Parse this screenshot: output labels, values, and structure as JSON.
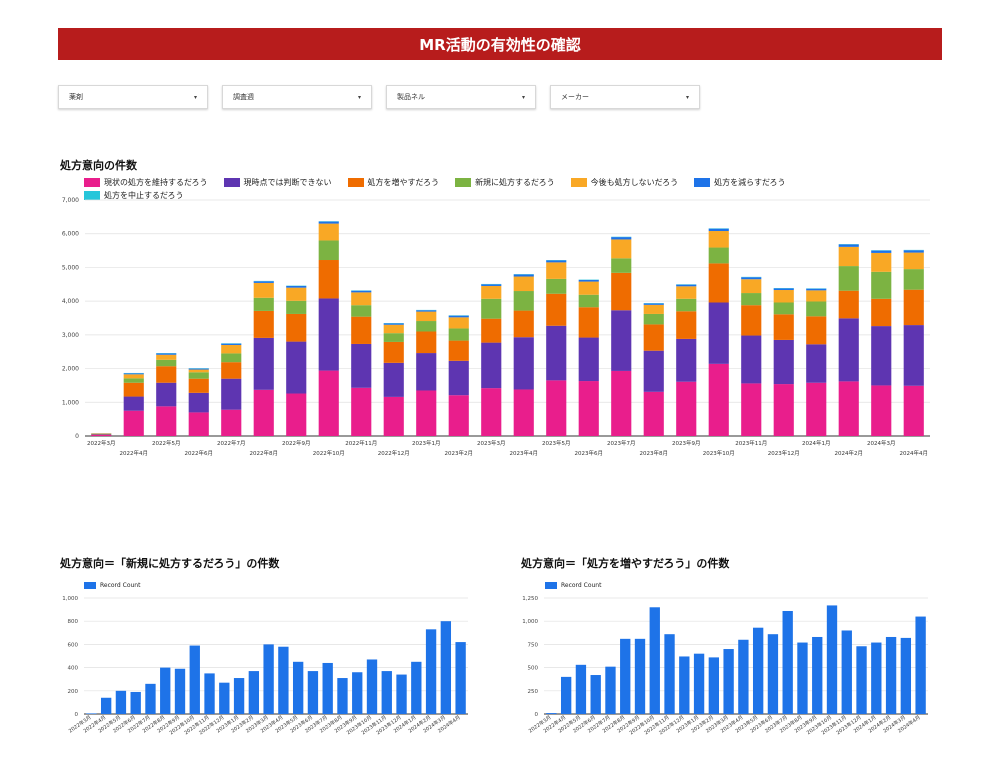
{
  "header": {
    "title": "MR活動の有効性の確認"
  },
  "filters": [
    {
      "label": "薬剤",
      "caret": "▾"
    },
    {
      "label": "調査週",
      "caret": "▾"
    },
    {
      "label": "製品ネル",
      "caret": "▾"
    },
    {
      "label": "メーカー",
      "caret": "▾"
    }
  ],
  "colors": {
    "pink": "#e91e8c",
    "purple": "#5e35b1",
    "orange": "#ef6c00",
    "green": "#7cb342",
    "yellow": "#f9a825",
    "blue": "#1e73e8",
    "teal": "#26c6da",
    "header_bg": "#b71c1c"
  },
  "chart_data": [
    {
      "type": "bar",
      "stacked": true,
      "title": "処方意向の件数",
      "ylim": [
        0,
        7000
      ],
      "yticks": [
        0,
        1000,
        2000,
        3000,
        4000,
        5000,
        6000,
        7000
      ],
      "ytick_labels": [
        "0",
        "1,000",
        "2,000",
        "3,000",
        "4,000",
        "5,000",
        "6,000",
        "7,000"
      ],
      "grid": true,
      "legend_position": "top",
      "categories": [
        "2022年3月",
        "2022年4月",
        "2022年5月",
        "2022年6月",
        "2022年7月",
        "2022年8月",
        "2022年9月",
        "2022年10月",
        "2022年11月",
        "2022年12月",
        "2023年1月",
        "2023年2月",
        "2023年3月",
        "2023年4月",
        "2023年5月",
        "2023年6月",
        "2023年7月",
        "2023年8月",
        "2023年9月",
        "2023年10月",
        "2023年11月",
        "2023年12月",
        "2024年1月",
        "2024年2月",
        "2024年3月",
        "2024年4月"
      ],
      "series": [
        {
          "name": "現状の処方を維持するだろう",
          "color": "#e91e8c",
          "values": [
            30,
            750,
            880,
            700,
            780,
            1370,
            1260,
            1940,
            1430,
            1160,
            1350,
            1210,
            1420,
            1380,
            1650,
            1630,
            1930,
            1310,
            1610,
            2140,
            1560,
            1540,
            1580,
            1620,
            1500,
            1490
          ]
        },
        {
          "name": "現時点では判断できない",
          "color": "#5e35b1",
          "values": [
            15,
            420,
            700,
            580,
            920,
            1540,
            1540,
            2140,
            1300,
            1010,
            1110,
            1020,
            1350,
            1550,
            1620,
            1290,
            1800,
            1220,
            1270,
            1820,
            1420,
            1310,
            1140,
            1870,
            1760,
            1800
          ]
        },
        {
          "name": "処方を増やすだろう",
          "color": "#ef6c00",
          "values": [
            10,
            410,
            490,
            420,
            490,
            800,
            820,
            1140,
            810,
            620,
            640,
            600,
            710,
            790,
            950,
            900,
            1110,
            780,
            820,
            1160,
            900,
            760,
            830,
            820,
            810,
            1050
          ]
        },
        {
          "name": "新規に処方するだろう",
          "color": "#7cb342",
          "values": [
            5,
            130,
            190,
            190,
            260,
            390,
            390,
            580,
            340,
            260,
            310,
            360,
            590,
            580,
            440,
            370,
            430,
            310,
            370,
            470,
            360,
            350,
            440,
            730,
            800,
            610
          ]
        },
        {
          "name": "今後も処方しないだろう",
          "color": "#f9a825",
          "values": [
            15,
            120,
            150,
            80,
            250,
            440,
            390,
            500,
            380,
            250,
            280,
            330,
            380,
            430,
            490,
            390,
            560,
            270,
            370,
            490,
            410,
            370,
            330,
            570,
            560,
            490
          ]
        },
        {
          "name": "処方を減らすだろう",
          "color": "#1e73e8",
          "values": [
            5,
            30,
            40,
            30,
            40,
            50,
            50,
            60,
            50,
            40,
            40,
            50,
            50,
            60,
            60,
            50,
            70,
            40,
            50,
            70,
            60,
            50,
            50,
            70,
            70,
            70
          ]
        },
        {
          "name": "処方を中止するだろう",
          "color": "#26c6da",
          "values": [
            2,
            10,
            10,
            10,
            10,
            10,
            10,
            10,
            10,
            10,
            10,
            10,
            10,
            10,
            10,
            10,
            10,
            10,
            10,
            10,
            10,
            10,
            10,
            10,
            10,
            10
          ]
        }
      ]
    },
    {
      "type": "bar",
      "title": "処方意向＝「新規に処方するだろう」の件数",
      "series_name": "Record Count",
      "color": "#1e73e8",
      "ylim": [
        0,
        1000
      ],
      "yticks": [
        0,
        200,
        400,
        600,
        800,
        1000
      ],
      "ytick_labels": [
        "0",
        "200",
        "400",
        "600",
        "800",
        "1,000"
      ],
      "categories": [
        "2022年3月",
        "2022年4月",
        "2022年5月",
        "2022年6月",
        "2022年7月",
        "2022年8月",
        "2022年9月",
        "2022年10月",
        "2022年11月",
        "2022年12月",
        "2023年1月",
        "2023年2月",
        "2023年3月",
        "2023年4月",
        "2023年5月",
        "2023年6月",
        "2023年7月",
        "2023年8月",
        "2023年9月",
        "2023年10月",
        "2023年11月",
        "2023年12月",
        "2024年1月",
        "2024年2月",
        "2024年3月",
        "2024年4月"
      ],
      "values": [
        5,
        140,
        200,
        190,
        260,
        400,
        390,
        590,
        350,
        270,
        310,
        370,
        600,
        580,
        450,
        370,
        440,
        310,
        360,
        470,
        370,
        340,
        450,
        730,
        800,
        620
      ]
    },
    {
      "type": "bar",
      "title": "処方意向＝「処方を増やすだろう」の件数",
      "series_name": "Record Count",
      "color": "#1e73e8",
      "ylim": [
        0,
        1250
      ],
      "yticks": [
        0,
        250,
        500,
        750,
        1000,
        1250
      ],
      "ytick_labels": [
        "0",
        "250",
        "500",
        "750",
        "1,000",
        "1,250"
      ],
      "categories": [
        "2022年3月",
        "2022年4月",
        "2022年5月",
        "2022年6月",
        "2022年7月",
        "2022年8月",
        "2022年9月",
        "2022年10月",
        "2022年11月",
        "2022年12月",
        "2023年1月",
        "2023年2月",
        "2023年3月",
        "2023年4月",
        "2023年5月",
        "2023年6月",
        "2023年7月",
        "2023年8月",
        "2023年9月",
        "2023年10月",
        "2023年11月",
        "2023年12月",
        "2024年1月",
        "2024年2月",
        "2024年3月",
        "2024年4月"
      ],
      "values": [
        10,
        400,
        530,
        420,
        510,
        810,
        810,
        1150,
        860,
        620,
        650,
        610,
        700,
        800,
        930,
        860,
        1110,
        770,
        830,
        1170,
        900,
        730,
        770,
        830,
        820,
        1050
      ]
    }
  ]
}
